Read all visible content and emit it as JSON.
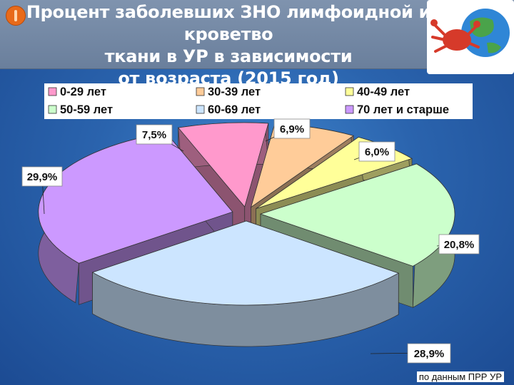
{
  "header": {
    "title_line1": "Процент заболевших ЗНО лимфоидной и кроветво",
    "title_line2": "ткани в УР в зависимости",
    "title_line3": "от возраста (2015 год)"
  },
  "chart_data": {
    "type": "pie",
    "subtype": "exploded-3d",
    "legend_position": "top",
    "categories": [
      "0-29 лет",
      "30-39 лет",
      "40-49 лет",
      "50-59 лет",
      "60-69 лет",
      "70 лет и старше"
    ],
    "values": [
      7.5,
      6.9,
      6.0,
      20.8,
      28.9,
      29.9
    ],
    "data_labels": [
      "7,5%",
      "6,9%",
      "6,0%",
      "20,8%",
      "28,9%",
      "29,9%"
    ],
    "colors": {
      "slice_0_29": "#ff99cc",
      "slice_30_39": "#ffcc99",
      "slice_40_49": "#ffff99",
      "slice_50_59": "#ccffcc",
      "slice_60_69": "#cce5ff",
      "slice_70_plus": "#cc99ff"
    }
  },
  "footer": {
    "source": "по данным ПРР УР"
  }
}
